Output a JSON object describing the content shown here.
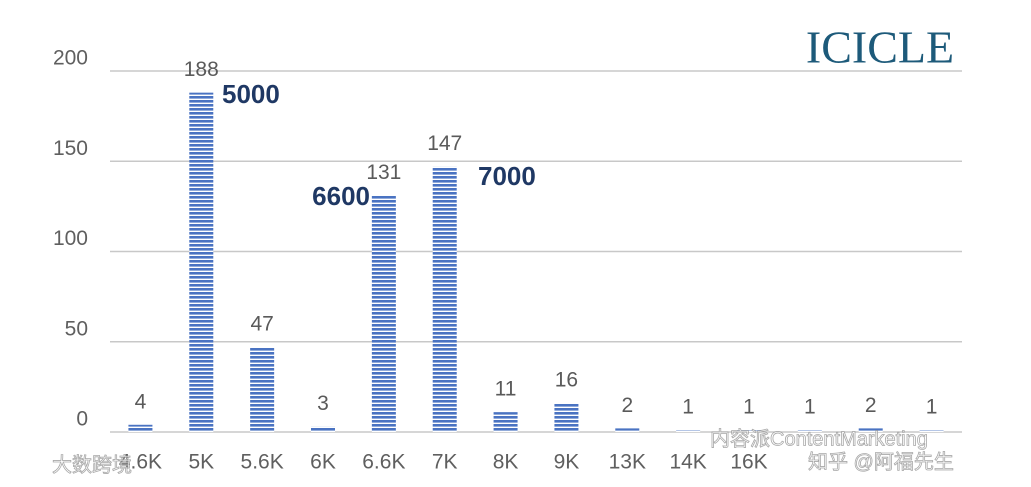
{
  "chart_data": {
    "type": "bar",
    "logo": "ICICLE",
    "categories": [
      "4.6K",
      "5K",
      "5.6K",
      "6K",
      "6.6K",
      "7K",
      "8K",
      "9K",
      "13K",
      "14K",
      "16K",
      null,
      null,
      null
    ],
    "values": [
      4,
      188,
      47,
      3,
      131,
      147,
      11,
      16,
      2,
      1,
      1,
      1,
      2,
      1
    ],
    "color": "#4a73c2",
    "ylim": [
      0,
      200
    ],
    "yticks": [
      0,
      50,
      100,
      150,
      200
    ],
    "grid": true,
    "annotations": [
      "5000",
      "6600",
      "7000"
    ],
    "watermarks": [
      "大数跨境",
      "内容派ContentMarketing",
      "知乎 @阿福先生"
    ]
  }
}
